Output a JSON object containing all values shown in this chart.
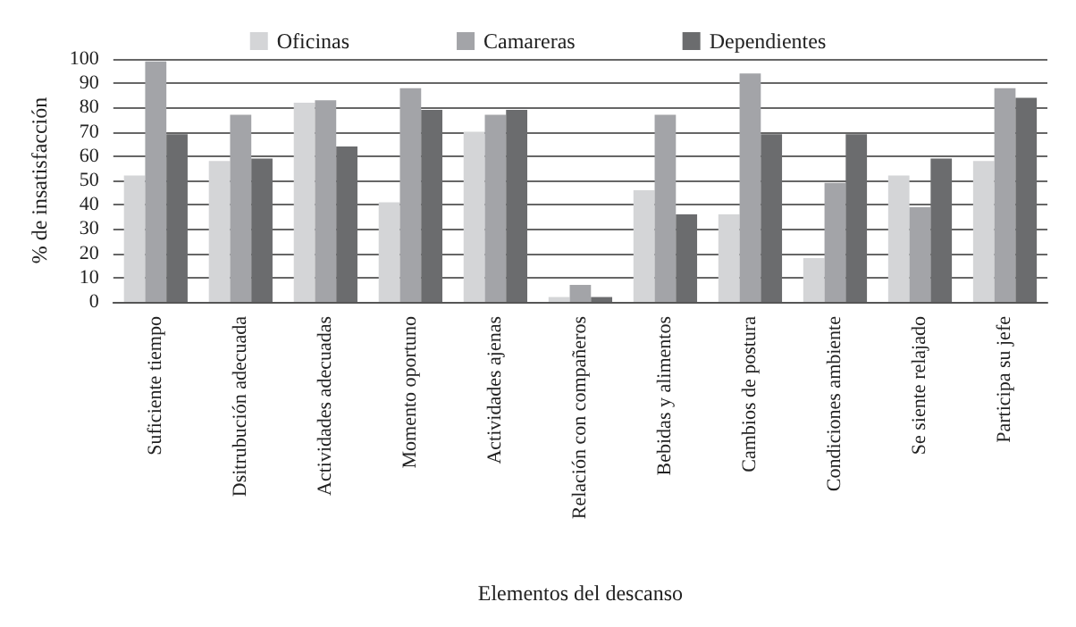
{
  "chart_data": {
    "type": "bar",
    "xlabel": "Elementos del descanso",
    "ylabel": "% de insatisfacción",
    "categories": [
      "Suficiente tiempo",
      "Dsitrubución adecuada",
      "Actividades adecuadas",
      "Momento oportuno",
      "Actividades ajenas",
      "Relación con compañeros",
      "Bebidas y alimentos",
      "Cambios de postura",
      "Condiciones ambiente",
      "Se siente relajado",
      "Participa su jefe"
    ],
    "series": [
      {
        "name": "Oficinas",
        "color": "#d4d5d7",
        "values": [
          52,
          58,
          82,
          41,
          70,
          2,
          46,
          36,
          18,
          52,
          58
        ]
      },
      {
        "name": "Camareras",
        "color": "#a3a4a8",
        "values": [
          99,
          77,
          83,
          88,
          77,
          7,
          77,
          94,
          49,
          39,
          88
        ]
      },
      {
        "name": "Dependientes",
        "color": "#6b6c6e",
        "values": [
          69,
          59,
          64,
          79,
          79,
          2,
          36,
          69,
          69,
          59,
          84
        ]
      }
    ],
    "ylim": [
      0,
      100
    ],
    "yticks": [
      0,
      10,
      20,
      30,
      40,
      50,
      60,
      70,
      80,
      90,
      100
    ],
    "grid": "y",
    "legend": "top"
  }
}
